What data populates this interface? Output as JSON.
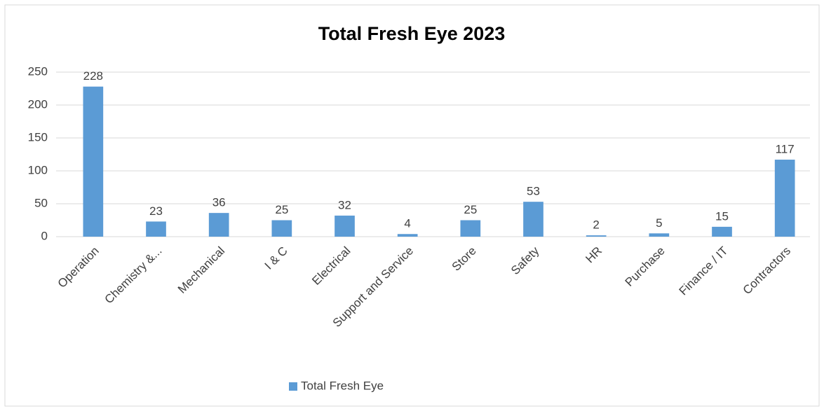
{
  "chart_data": {
    "type": "bar",
    "title": "Total Fresh Eye 2023",
    "categories": [
      "Operation",
      "Chemistry &...",
      "Mechanical",
      "I & C",
      "Electrical",
      "Support and Service",
      "Store",
      "Safety",
      "HR",
      "Purchase",
      "Finance / IT",
      "Contractors"
    ],
    "series": [
      {
        "name": "Total Fresh Eye",
        "color": "#5b9bd5",
        "values": [
          228,
          23,
          36,
          25,
          32,
          4,
          25,
          53,
          2,
          5,
          15,
          117
        ]
      }
    ],
    "ylim": [
      0,
      250
    ],
    "yticks": [
      0,
      50,
      100,
      150,
      200,
      250
    ],
    "grid": true,
    "legend": "bottom",
    "data_labels": true
  }
}
